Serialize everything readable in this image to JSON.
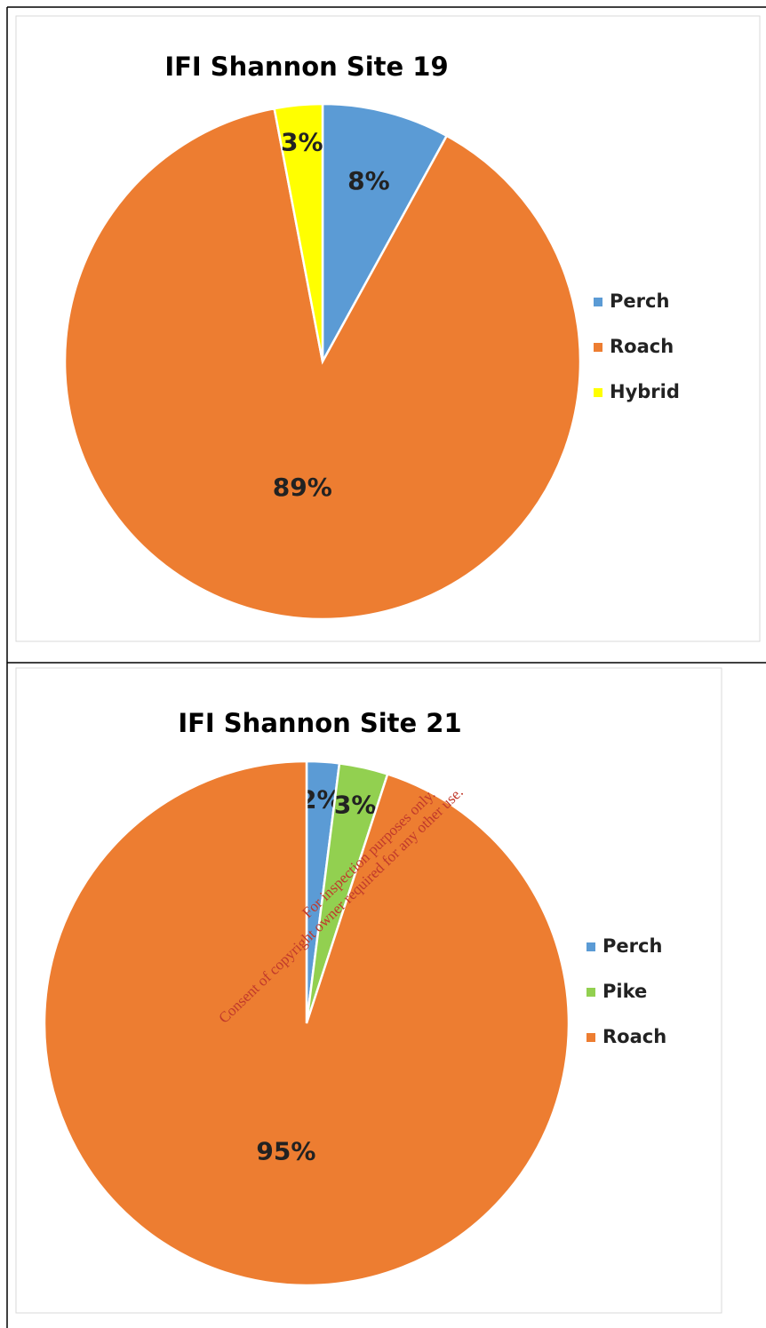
{
  "chart_data": [
    {
      "type": "pie",
      "title": "IFI Shannon  Site 19",
      "categories": [
        "Perch",
        "Roach",
        "Hybrid"
      ],
      "values": [
        8,
        89,
        3
      ],
      "value_labels": [
        "8%",
        "89%",
        "3%"
      ],
      "colors": [
        "#5b9bd5",
        "#ed7d31",
        "#ffff00"
      ],
      "legend": "right"
    },
    {
      "type": "pie",
      "title": "IFI Shannon  Site 21",
      "categories": [
        "Perch",
        "Pike",
        "Roach"
      ],
      "values": [
        2,
        3,
        95
      ],
      "value_labels": [
        "2%",
        "3%",
        "95%"
      ],
      "colors": [
        "#5b9bd5",
        "#92d050",
        "#ed7d31"
      ],
      "legend": "right"
    }
  ],
  "watermark": [
    "For inspection purposes only.",
    "Consent of copyright owner required for any other use."
  ]
}
